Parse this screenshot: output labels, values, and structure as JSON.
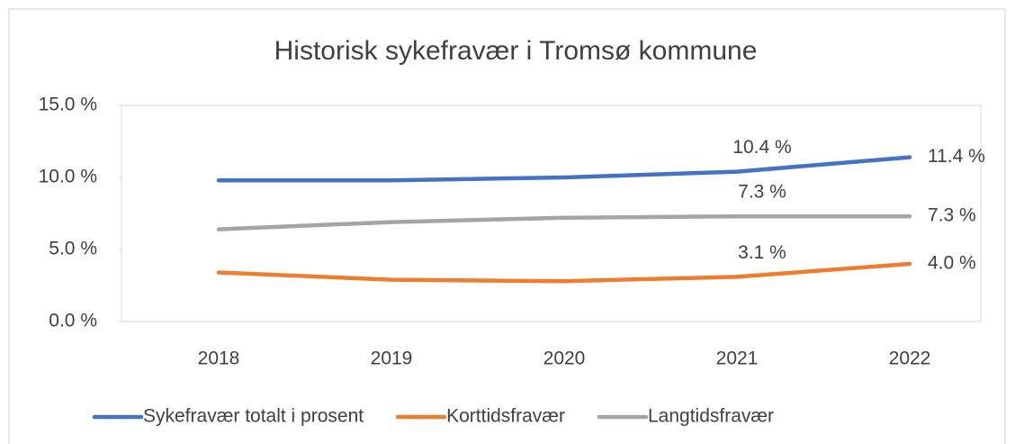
{
  "chart_data": {
    "type": "line",
    "title": "Historisk sykefravær i Tromsø kommune",
    "categories": [
      "2018",
      "2019",
      "2020",
      "2021",
      "2022"
    ],
    "series": [
      {
        "name": "Sykefravær totalt i prosent",
        "color": "#4472c4",
        "values": [
          9.8,
          9.8,
          10.0,
          10.4,
          11.4
        ],
        "value_labels": [
          null,
          null,
          null,
          "10.4 %",
          "11.4 %"
        ]
      },
      {
        "name": "Korttidsfravær",
        "color": "#ed7d31",
        "values": [
          3.4,
          2.9,
          2.8,
          3.1,
          4.0
        ],
        "value_labels": [
          null,
          null,
          null,
          "3.1 %",
          "4.0 %"
        ]
      },
      {
        "name": "Langtidsfravær",
        "color": "#a5a5a5",
        "values": [
          6.4,
          6.9,
          7.2,
          7.3,
          7.3
        ],
        "value_labels": [
          null,
          null,
          null,
          "7.3 %",
          "7.3 %"
        ]
      }
    ],
    "ylim": [
      0,
      15
    ],
    "yticks": [
      {
        "value": 0,
        "label": "0.0 %"
      },
      {
        "value": 5,
        "label": "5.0 %"
      },
      {
        "value": 10,
        "label": "10.0 %"
      },
      {
        "value": 15,
        "label": "15.0 %"
      }
    ],
    "grid": false,
    "legend": "bottom"
  }
}
